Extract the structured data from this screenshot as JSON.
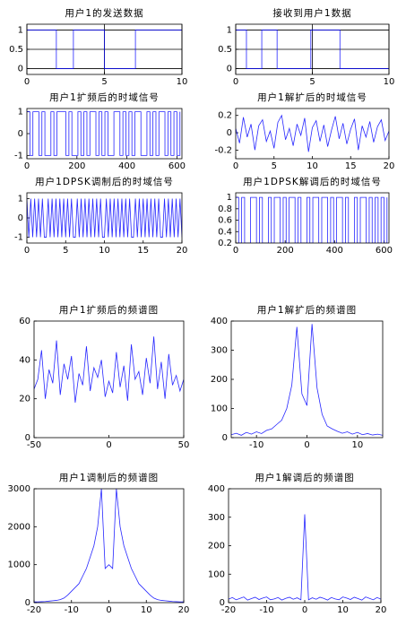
{
  "chart_data": [
    {
      "type": "line",
      "title": "用户1的发送数据",
      "x": [
        0,
        1.9,
        1.9,
        3,
        3,
        5,
        5,
        7,
        7,
        10
      ],
      "values": [
        1,
        1,
        0,
        0,
        1,
        1,
        0,
        0,
        1,
        1
      ],
      "xlim": [
        0,
        10
      ],
      "ylim": [
        -0.15,
        1.15
      ],
      "xticks": [
        0,
        5,
        10
      ],
      "yticks": [
        0,
        0.5,
        1
      ],
      "grid": true,
      "color": "#0000ff"
    },
    {
      "type": "line",
      "title": "接收到用户1数据",
      "x": [
        0,
        0.7,
        0.7,
        1.7,
        1.7,
        2.7,
        2.7,
        4.9,
        4.9,
        6.8,
        6.8,
        10
      ],
      "values": [
        1,
        1,
        0,
        0,
        1,
        1,
        0,
        0,
        1,
        1,
        0,
        0
      ],
      "xlim": [
        0,
        10
      ],
      "ylim": [
        -0.15,
        1.15
      ],
      "xticks": [
        0,
        5,
        10
      ],
      "yticks": [
        0,
        0.5,
        1
      ],
      "grid": true,
      "color": "#0000ff"
    },
    {
      "type": "line",
      "step": true,
      "title": "用户1扩频后的时域信号",
      "x": [
        0,
        12,
        24,
        36,
        48,
        60,
        72,
        84,
        96,
        108,
        120,
        132,
        144,
        156,
        168,
        180,
        192,
        204,
        216,
        228,
        240,
        252,
        264,
        276,
        288,
        300,
        312,
        324,
        336,
        348,
        360,
        372,
        384,
        396,
        408,
        420,
        432,
        444,
        456,
        468,
        480,
        492,
        504,
        516,
        528,
        540,
        552,
        564,
        576,
        588,
        600,
        612
      ],
      "values": [
        1,
        -1,
        1,
        1,
        -1,
        1,
        -1,
        -1,
        1,
        -1,
        1,
        1,
        1,
        -1,
        1,
        -1,
        -1,
        1,
        -1,
        1,
        -1,
        1,
        1,
        -1,
        1,
        -1,
        1,
        -1,
        -1,
        1,
        1,
        -1,
        1,
        -1,
        1,
        -1,
        1,
        1,
        -1,
        -1,
        1,
        -1,
        1,
        -1,
        1,
        1,
        -1,
        1,
        -1,
        1,
        -1,
        1
      ],
      "xlim": [
        0,
        620
      ],
      "ylim": [
        -1.15,
        1.15
      ],
      "xticks": [
        0,
        200,
        400,
        600
      ],
      "yticks": [
        -1,
        0,
        1
      ],
      "grid": false,
      "color": "#0000ff"
    },
    {
      "type": "line",
      "title": "用户1解扩后的时域信号",
      "x": [
        0,
        0.5,
        1,
        1.5,
        2,
        2.5,
        3,
        3.5,
        4,
        4.5,
        5,
        5.5,
        6,
        6.5,
        7,
        7.5,
        8,
        8.5,
        9,
        9.5,
        10,
        10.5,
        11,
        11.5,
        12,
        12.5,
        13,
        13.5,
        14,
        14.5,
        15,
        15.5,
        16,
        16.5,
        17,
        17.5,
        18,
        18.5,
        19,
        19.5,
        20
      ],
      "values": [
        0.05,
        -0.12,
        0.18,
        -0.05,
        0.1,
        -0.2,
        0.08,
        0.15,
        -0.1,
        0.02,
        -0.18,
        0.12,
        0.2,
        -0.08,
        0.05,
        -0.15,
        0.1,
        -0.03,
        0.17,
        -0.22,
        0.06,
        0.14,
        -0.1,
        0.09,
        -0.16,
        0.03,
        0.19,
        -0.07,
        0.11,
        -0.13,
        0.04,
        0.16,
        -0.2,
        0.08,
        -0.05,
        0.13,
        -0.11,
        0.07,
        0.15,
        -0.09,
        0.02
      ],
      "xlim": [
        0,
        20
      ],
      "ylim": [
        -0.3,
        0.28
      ],
      "xticks": [
        0,
        5,
        10,
        15,
        20
      ],
      "yticks": [
        -0.2,
        0,
        0.2
      ],
      "grid": false,
      "color": "#0000ff"
    },
    {
      "type": "line",
      "title": "用户1DPSK调制后的时域信号",
      "x": [
        0,
        0.25,
        0.5,
        0.75,
        1,
        1.25,
        1.5,
        1.75,
        2,
        2.25,
        2.5,
        2.75,
        3,
        3.25,
        3.5,
        3.75,
        4,
        4.25,
        4.5,
        4.75,
        5,
        5.25,
        5.5,
        5.75,
        6,
        6.25,
        6.5,
        6.75,
        7,
        7.25,
        7.5,
        7.75,
        8,
        8.25,
        8.5,
        8.75,
        9,
        9.25,
        9.5,
        9.75,
        10,
        10.25,
        10.5,
        10.75,
        11,
        11.25,
        11.5,
        11.75,
        12,
        12.25,
        12.5,
        12.75,
        13,
        13.25,
        13.5,
        13.75,
        14,
        14.25,
        14.5,
        14.75,
        15,
        15.25,
        15.5,
        15.75,
        16,
        16.25,
        16.5,
        16.75,
        17,
        17.25,
        17.5,
        17.75,
        18,
        18.25,
        18.5,
        18.75,
        19,
        19.25,
        19.5,
        19.75,
        20
      ],
      "values": [
        1,
        -1,
        1,
        -1,
        1,
        -1,
        1,
        -1,
        1,
        -1,
        -1,
        1,
        -1,
        1,
        -1,
        1,
        -1,
        1,
        -1,
        1,
        -1,
        1,
        -1,
        1,
        -1,
        -1,
        1,
        -1,
        1,
        -1,
        1,
        -1,
        1,
        -1,
        1,
        -1,
        1,
        -1,
        1,
        -1,
        -1,
        1,
        -1,
        1,
        -1,
        1,
        -1,
        1,
        -1,
        1,
        -1,
        1,
        -1,
        1,
        -1,
        -1,
        1,
        -1,
        1,
        -1,
        1,
        -1,
        1,
        -1,
        1,
        -1,
        1,
        -1,
        1,
        -1,
        -1,
        1,
        -1,
        1,
        -1,
        1,
        -1,
        1,
        -1,
        1,
        -1
      ],
      "xlim": [
        0,
        20
      ],
      "ylim": [
        -1.3,
        1.3
      ],
      "xticks": [
        0,
        5,
        10,
        15,
        20
      ],
      "yticks": [
        -1,
        0,
        1
      ],
      "grid": false,
      "color": "#0000ff"
    },
    {
      "type": "line",
      "step": true,
      "title": "用户1DPSK解调后的时域信号",
      "x": [
        0,
        12,
        24,
        36,
        48,
        60,
        72,
        84,
        96,
        108,
        120,
        132,
        144,
        156,
        168,
        180,
        192,
        204,
        216,
        228,
        240,
        252,
        264,
        276,
        288,
        300,
        312,
        324,
        336,
        348,
        360,
        372,
        384,
        396,
        408,
        420,
        432,
        444,
        456,
        468,
        480,
        492,
        504,
        516,
        528,
        540,
        552,
        564,
        576,
        588,
        600,
        612
      ],
      "values": [
        1,
        0.2,
        1,
        0.2,
        0.2,
        1,
        1,
        0.2,
        1,
        0.2,
        0.2,
        1,
        0.2,
        1,
        1,
        0.2,
        1,
        0.2,
        1,
        1,
        0.2,
        1,
        0.2,
        0.2,
        1,
        0.2,
        1,
        1,
        0.2,
        1,
        1,
        0.2,
        1,
        0.2,
        1,
        1,
        0.2,
        1,
        0.2,
        0.2,
        1,
        0.2,
        1,
        1,
        0.2,
        1,
        0.2,
        1,
        0.2,
        1,
        0.2,
        1
      ],
      "xlim": [
        0,
        620
      ],
      "ylim": [
        0.2,
        1.08
      ],
      "xticks": [
        0,
        200,
        400,
        600
      ],
      "yticks": [
        0.2,
        0.4,
        0.6,
        0.8,
        1
      ],
      "grid": false,
      "color": "#0000ff"
    },
    {
      "type": "line",
      "title": "用户1扩频后的频谱图",
      "x": [
        -50,
        -47.5,
        -45,
        -42.5,
        -40,
        -37.5,
        -35,
        -32.5,
        -30,
        -27.5,
        -25,
        -22.5,
        -20,
        -17.5,
        -15,
        -12.5,
        -10,
        -7.5,
        -5,
        -2.5,
        0,
        2.5,
        5,
        7.5,
        10,
        12.5,
        15,
        17.5,
        20,
        22.5,
        25,
        27.5,
        30,
        32.5,
        35,
        37.5,
        40,
        42.5,
        45,
        47.5,
        50
      ],
      "values": [
        25,
        30,
        45,
        20,
        35,
        28,
        50,
        22,
        38,
        30,
        42,
        18,
        33,
        27,
        47,
        24,
        36,
        31,
        40,
        21,
        29,
        23,
        44,
        26,
        37,
        19,
        48,
        30,
        34,
        22,
        41,
        28,
        52,
        25,
        39,
        20,
        43,
        27,
        32,
        24,
        30
      ],
      "xlim": [
        -50,
        50
      ],
      "ylim": [
        0,
        60
      ],
      "xticks": [
        -50,
        0,
        50
      ],
      "yticks": [
        0,
        20,
        40,
        60
      ],
      "grid": false,
      "color": "#0000ff"
    },
    {
      "type": "line",
      "title": "用户1解扩后的频谱图",
      "x": [
        -15,
        -14,
        -13,
        -12,
        -11,
        -10,
        -9,
        -8,
        -7,
        -6,
        -5,
        -4,
        -3,
        -2,
        -1,
        0,
        1,
        2,
        3,
        4,
        5,
        6,
        7,
        8,
        9,
        10,
        11,
        12,
        13,
        14,
        15
      ],
      "values": [
        10,
        15,
        8,
        18,
        12,
        20,
        14,
        25,
        30,
        45,
        60,
        100,
        180,
        380,
        150,
        110,
        390,
        170,
        80,
        40,
        30,
        22,
        15,
        20,
        12,
        18,
        10,
        14,
        9,
        12,
        8
      ],
      "xlim": [
        -15,
        15
      ],
      "ylim": [
        0,
        400
      ],
      "xticks": [
        -10,
        0,
        10
      ],
      "yticks": [
        0,
        100,
        200,
        300,
        400
      ],
      "grid": false,
      "color": "#0000ff"
    },
    {
      "type": "line",
      "title": "用户1调制后的频谱图",
      "x": [
        -20,
        -19,
        -18,
        -17,
        -16,
        -15,
        -14,
        -13,
        -12,
        -11,
        -10,
        -9,
        -8,
        -7,
        -6,
        -5,
        -4,
        -3,
        -2,
        -1,
        0,
        1,
        2,
        3,
        4,
        5,
        6,
        7,
        8,
        9,
        10,
        11,
        12,
        13,
        14,
        15,
        16,
        17,
        18,
        19,
        20
      ],
      "values": [
        20,
        20,
        25,
        30,
        40,
        50,
        60,
        80,
        120,
        200,
        300,
        400,
        500,
        700,
        900,
        1200,
        1500,
        2000,
        3000,
        900,
        1000,
        900,
        3000,
        2000,
        1500,
        1200,
        900,
        700,
        500,
        400,
        300,
        200,
        120,
        80,
        60,
        50,
        40,
        30,
        25,
        20,
        20
      ],
      "xlim": [
        -20,
        20
      ],
      "ylim": [
        0,
        3000
      ],
      "xticks": [
        -20,
        -10,
        0,
        10,
        20
      ],
      "yticks": [
        0,
        1000,
        2000,
        3000
      ],
      "grid": false,
      "color": "#0000ff"
    },
    {
      "type": "line",
      "title": "用户1解调后的频谱图",
      "x": [
        -20,
        -19,
        -18,
        -17,
        -16,
        -15,
        -14,
        -13,
        -12,
        -11,
        -10,
        -9,
        -8,
        -7,
        -6,
        -5,
        -4,
        -3,
        -2,
        -1,
        0,
        1,
        2,
        3,
        4,
        5,
        6,
        7,
        8,
        9,
        10,
        11,
        12,
        13,
        14,
        15,
        16,
        17,
        18,
        19,
        20
      ],
      "values": [
        12,
        18,
        10,
        15,
        20,
        9,
        14,
        19,
        11,
        16,
        20,
        10,
        13,
        18,
        9,
        15,
        19,
        12,
        17,
        10,
        310,
        10,
        17,
        12,
        19,
        15,
        9,
        18,
        13,
        10,
        20,
        16,
        11,
        19,
        14,
        9,
        20,
        15,
        10,
        18,
        12
      ],
      "xlim": [
        -20,
        20
      ],
      "ylim": [
        0,
        400
      ],
      "xticks": [
        -20,
        -10,
        0,
        10,
        20
      ],
      "yticks": [
        0,
        100,
        200,
        300,
        400
      ],
      "grid": false,
      "color": "#0000ff"
    }
  ]
}
